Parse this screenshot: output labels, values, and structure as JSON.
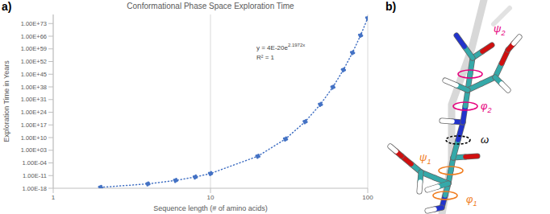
{
  "chart_data": {
    "type": "scatter",
    "title": "Conformational Phase Space Exploration Time",
    "x_label": "Sequence length (# of amino acids)",
    "y_label": "Exploration Time in Years",
    "x": [
      2,
      4,
      6,
      8,
      10,
      20,
      30,
      40,
      50,
      60,
      70,
      80,
      90,
      100
    ],
    "values": [
      3.2e-18,
      2.6e-16,
      2.1e-14,
      1.7e-12,
      1.4e-10,
      0.49,
      1700000000.0,
      5.9e+18,
      2.1e+28,
      7.2e+37,
      2.5e+47,
      8.7e+56,
      3e+66,
      1.1e+76
    ],
    "color": "#4472c4",
    "marker": "circle",
    "line_style": "dotted",
    "log": true,
    "xlim": [
      1,
      100
    ],
    "xticks": [
      1,
      10,
      100
    ],
    "ylim": [
      1e-18,
      1e+78
    ],
    "yticks": [
      {
        "value": 1e-18,
        "label": "1.00E-18"
      },
      {
        "value": 1e-11,
        "label": "1.00E-11"
      },
      {
        "value": 0.0001,
        "label": "1.00E-04"
      },
      {
        "value": 1000.0,
        "label": "1.00E+03"
      },
      {
        "value": 10000000000.0,
        "label": "1.00E+10"
      },
      {
        "value": 1e+17,
        "label": "1.00E+17"
      },
      {
        "value": 1e+24,
        "label": "1.00E+24"
      },
      {
        "value": 1e+31,
        "label": "1.00E+31"
      },
      {
        "value": 1e+38,
        "label": "1.00E+38"
      },
      {
        "value": 1e+45,
        "label": "1.00E+45"
      },
      {
        "value": 1e+52,
        "label": "1.00E+52"
      },
      {
        "value": 1e+59,
        "label": "1.00E+59"
      },
      {
        "value": 1e+66,
        "label": "1.00E+66"
      },
      {
        "value": 1e+73,
        "label": "1.00E+73"
      }
    ],
    "grid": true,
    "annotations": [
      {
        "text": "y = 4E-20e",
        "superscript": "2.1972x"
      },
      {
        "text": "R² = 1"
      }
    ]
  },
  "panel_labels": [
    "a)",
    "b)"
  ],
  "diagram": {
    "dihedrals": [
      {
        "symbol": "ψ",
        "subscript": "2",
        "color": "#e6007e"
      },
      {
        "symbol": "φ",
        "subscript": "2",
        "color": "#e6007e"
      },
      {
        "symbol": "ω",
        "color": "#000000",
        "line_style": "dashed"
      },
      {
        "symbol": "ψ",
        "subscript": "1",
        "color": "#f07c1e"
      },
      {
        "symbol": "φ",
        "subscript": "1",
        "color": "#f07c1e"
      }
    ]
  }
}
